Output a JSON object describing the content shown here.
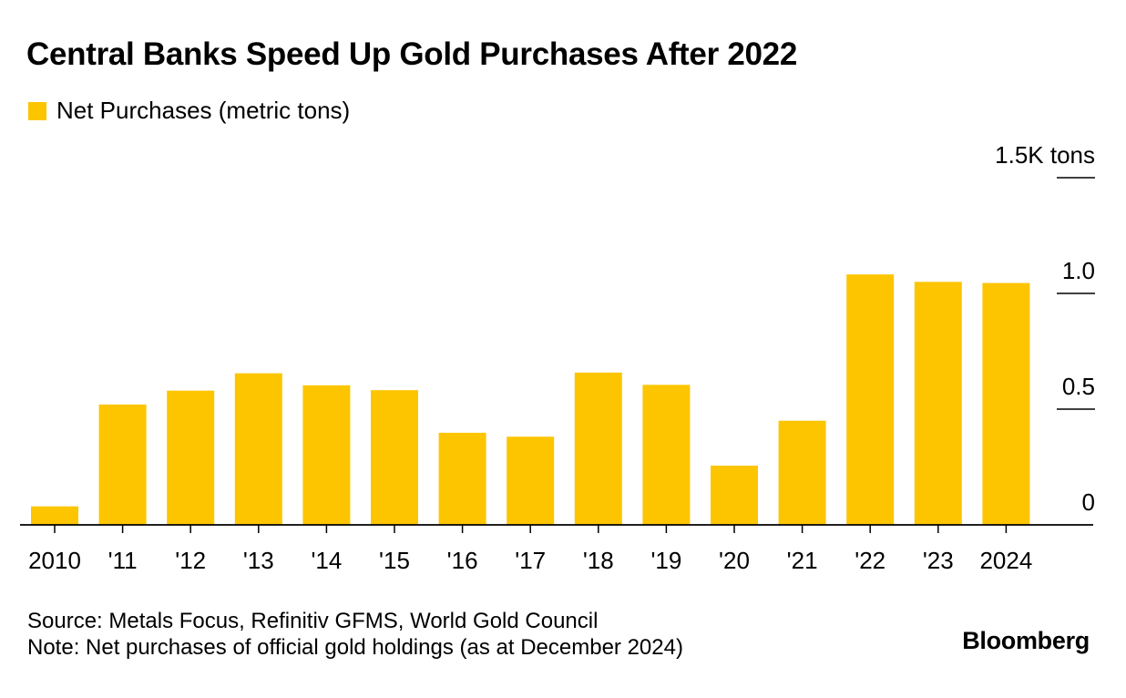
{
  "title": "Central Banks Speed Up Gold Purchases After 2022",
  "legend": {
    "label": "Net Purchases (metric tons)"
  },
  "colors": {
    "bar": "#FDC500",
    "axis": "#000000",
    "text": "#000000",
    "background": "#FFFFFF"
  },
  "chart_data": {
    "type": "bar",
    "series": [
      {
        "name": "Net Purchases (metric tons)",
        "values": [
          0.08,
          0.52,
          0.58,
          0.655,
          0.603,
          0.582,
          0.398,
          0.381,
          0.658,
          0.605,
          0.256,
          0.45,
          1.082,
          1.05,
          1.045
        ]
      }
    ],
    "categories": [
      "2010",
      "'11",
      "'12",
      "'13",
      "'14",
      "'15",
      "'16",
      "'17",
      "'18",
      "'19",
      "'20",
      "'21",
      "'22",
      "'23",
      "2024"
    ],
    "y_ticks": [
      {
        "value": 0,
        "label": "0"
      },
      {
        "value": 0.5,
        "label": "0.5"
      },
      {
        "value": 1.0,
        "label": "1.0"
      },
      {
        "value": 1.5,
        "label": "1.5K tons"
      }
    ],
    "ylim": [
      0,
      1.5
    ],
    "unit": "thousand metric tons",
    "xlabel": "",
    "ylabel": "",
    "axis_position": "right",
    "grid": false
  },
  "footer": {
    "source": "Source: Metals Focus, Refinitiv GFMS, World Gold Council",
    "note": "Note: Net purchases of official gold holdings (as at December 2024)",
    "brand": "Bloomberg"
  }
}
